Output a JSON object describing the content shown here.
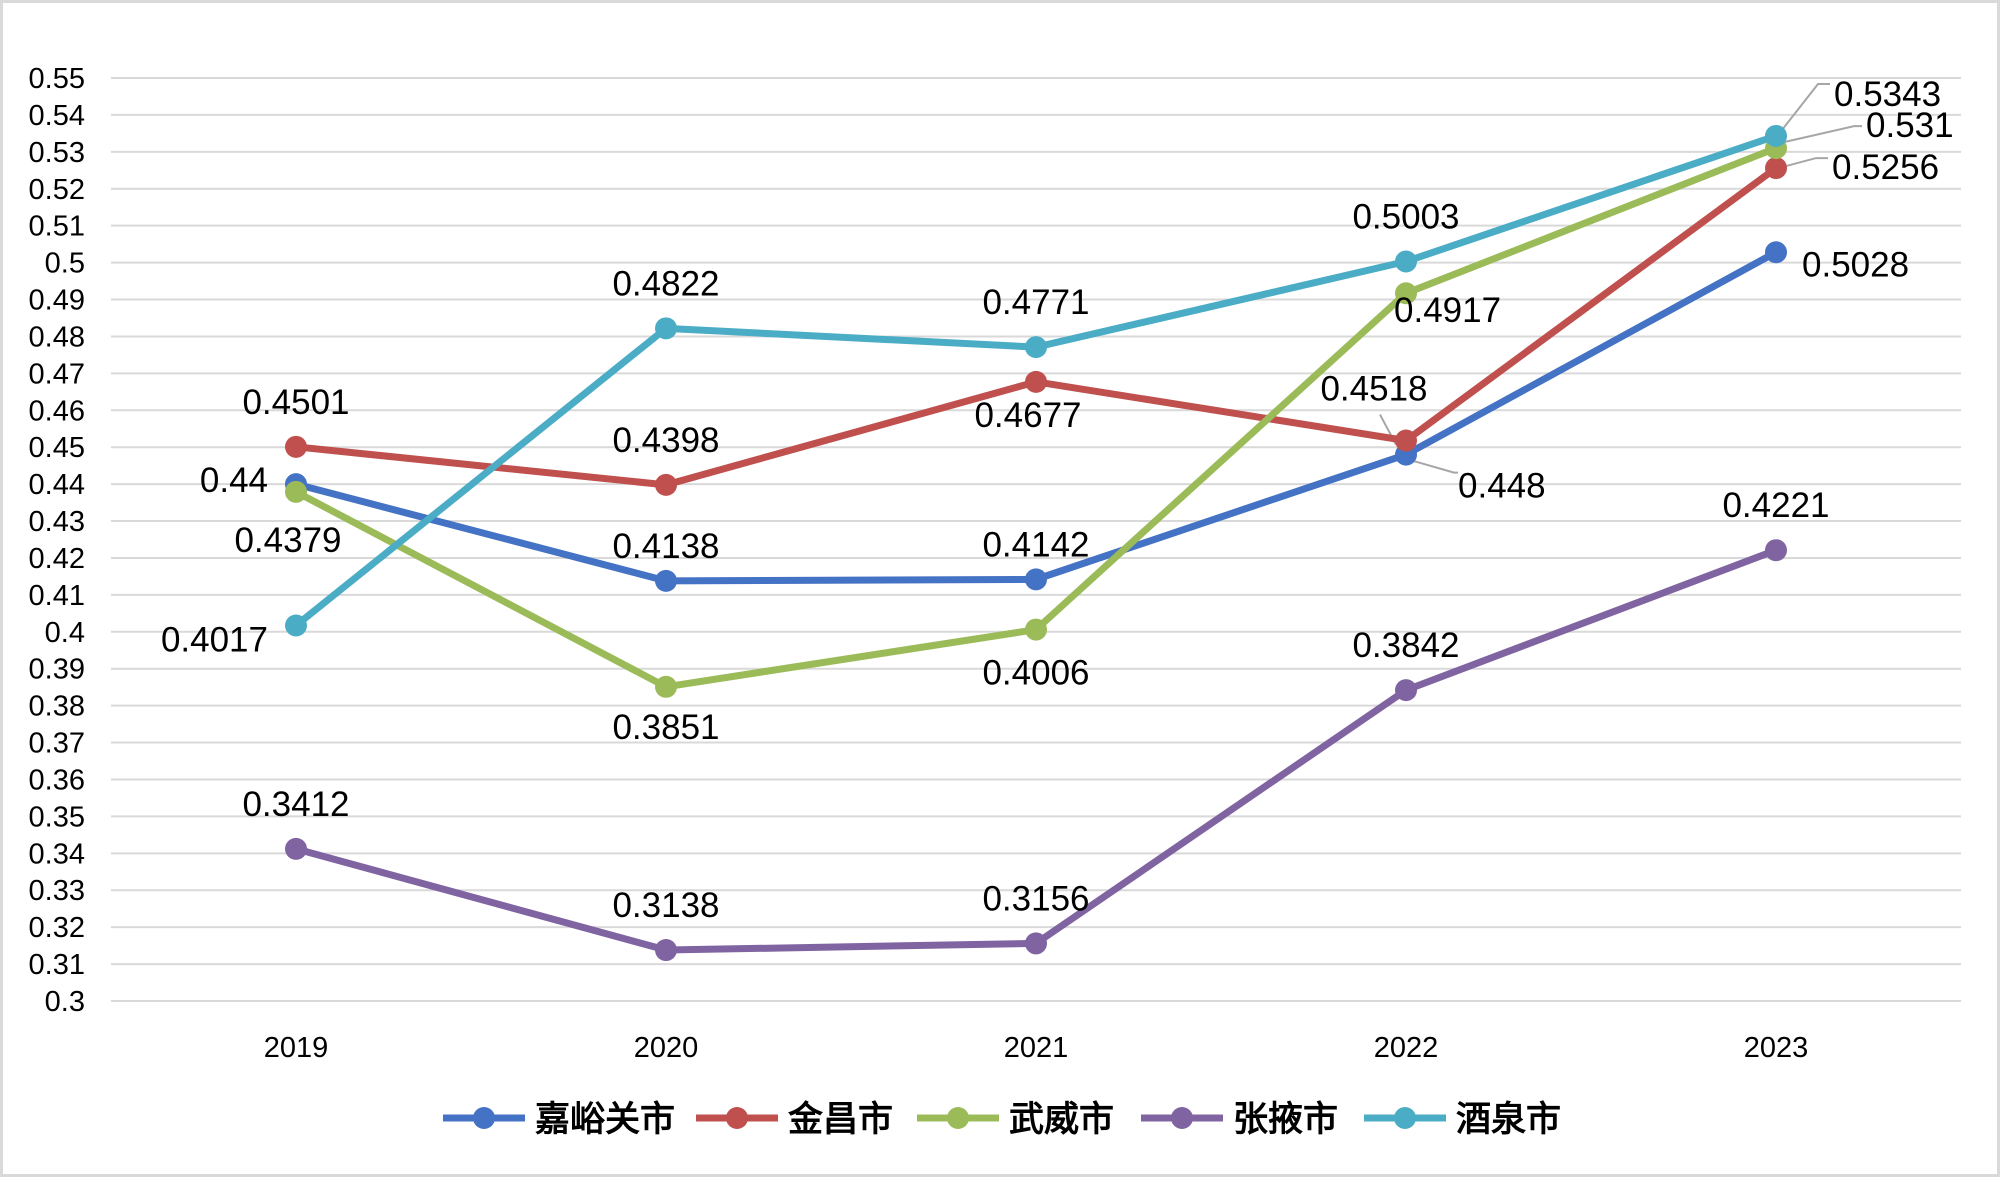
{
  "chart_data": {
    "type": "line",
    "title": "",
    "xlabel": "",
    "ylabel": "",
    "categories": [
      "2019",
      "2020",
      "2021",
      "2022",
      "2023"
    ],
    "ylim": [
      0.3,
      0.55
    ],
    "ytick_step": 0.01,
    "ytick_labels": [
      "0.3",
      "0.31",
      "0.32",
      "0.33",
      "0.34",
      "0.35",
      "0.36",
      "0.37",
      "0.38",
      "0.39",
      "0.4",
      "0.41",
      "0.42",
      "0.43",
      "0.44",
      "0.45",
      "0.46",
      "0.47",
      "0.48",
      "0.49",
      "0.5",
      "0.51",
      "0.52",
      "0.53",
      "0.54",
      "0.55"
    ],
    "grid": true,
    "legend_position": "bottom",
    "series": [
      {
        "name": "嘉峪关市",
        "color": "#4472c4",
        "values": [
          0.44,
          0.4138,
          0.4142,
          0.448,
          0.5028
        ],
        "labels": [
          "0.44",
          "0.4138",
          "0.4142",
          "0.448",
          "0.5028"
        ]
      },
      {
        "name": "金昌市",
        "color": "#c0504d",
        "values": [
          0.4501,
          0.4398,
          0.4677,
          0.4518,
          0.5256
        ],
        "labels": [
          "0.4501",
          "0.4398",
          "0.4677",
          "0.4518",
          "0.5256"
        ]
      },
      {
        "name": "武威市",
        "color": "#9bbb59",
        "values": [
          0.4379,
          0.3851,
          0.4006,
          0.4917,
          0.531
        ],
        "labels": [
          "0.4379",
          "0.3851",
          "0.4006",
          "0.4917",
          "0.531"
        ]
      },
      {
        "name": "张掖市",
        "color": "#8064a2",
        "values": [
          0.3412,
          0.3138,
          0.3156,
          0.3842,
          0.4221
        ],
        "labels": [
          "0.3412",
          "0.3138",
          "0.3156",
          "0.3842",
          "0.4221"
        ]
      },
      {
        "name": "酒泉市",
        "color": "#4bacc6",
        "values": [
          0.4017,
          0.4822,
          0.4771,
          0.5003,
          0.5343
        ],
        "labels": [
          "0.4017",
          "0.4822",
          "0.4771",
          "0.5003",
          "0.5343"
        ]
      }
    ]
  }
}
